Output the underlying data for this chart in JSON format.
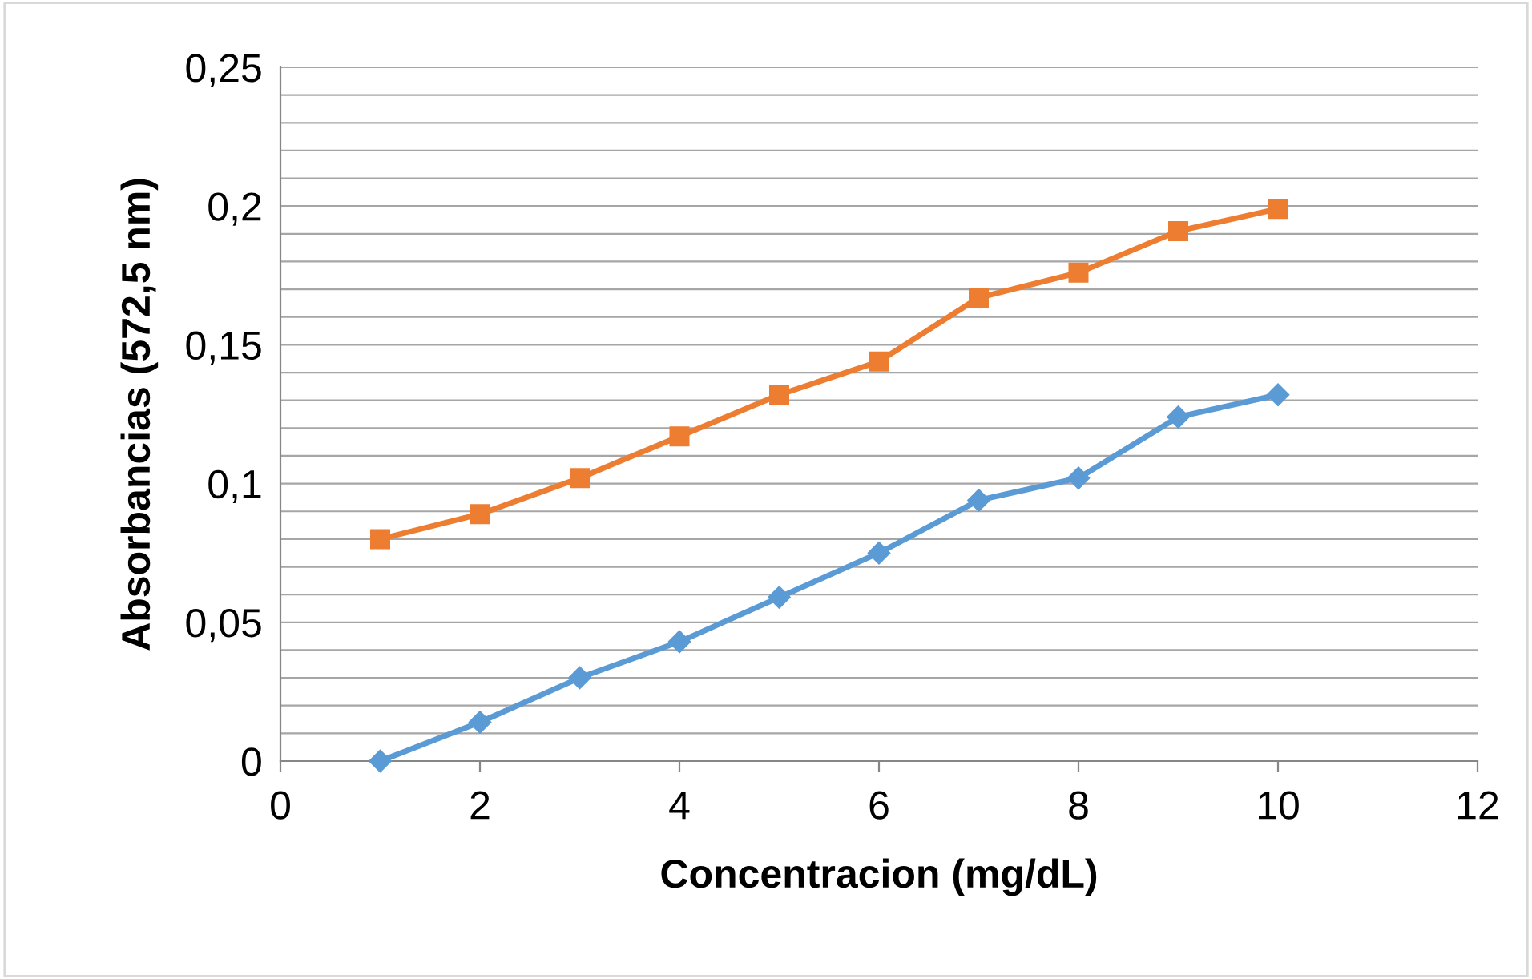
{
  "chart_data": {
    "type": "line",
    "xlabel": "Concentracion (mg/dL)",
    "ylabel": "Absorbancias (572,5 nm)",
    "x": [
      1,
      2,
      3,
      4,
      5,
      6,
      7,
      8,
      9,
      10
    ],
    "series": [
      {
        "color": "#5b9bd5",
        "marker": "diamond",
        "values": [
          0,
          0.014,
          0.03,
          0.043,
          0.059,
          0.075,
          0.094,
          0.102,
          0.124,
          0.132
        ]
      },
      {
        "color": "#ed7d31",
        "marker": "square",
        "values": [
          0.08,
          0.089,
          0.102,
          0.117,
          0.132,
          0.144,
          0.167,
          0.176,
          0.191,
          0.199
        ]
      }
    ],
    "xlim": [
      0,
      12
    ],
    "xticks": [
      0,
      2,
      4,
      6,
      8,
      10,
      12
    ],
    "ylim": [
      0,
      0.25
    ],
    "yticks": [
      {
        "value": 0,
        "label": "0"
      },
      {
        "value": 0.01,
        "label": null
      },
      {
        "value": 0.02,
        "label": null
      },
      {
        "value": 0.03,
        "label": null
      },
      {
        "value": 0.04,
        "label": null
      },
      {
        "value": 0.05,
        "label": "0,05"
      },
      {
        "value": 0.06,
        "label": null
      },
      {
        "value": 0.07,
        "label": null
      },
      {
        "value": 0.08,
        "label": null
      },
      {
        "value": 0.09,
        "label": null
      },
      {
        "value": 0.1,
        "label": "0,1"
      },
      {
        "value": 0.11,
        "label": null
      },
      {
        "value": 0.12,
        "label": null
      },
      {
        "value": 0.13,
        "label": null
      },
      {
        "value": 0.14,
        "label": null
      },
      {
        "value": 0.15,
        "label": "0,15"
      },
      {
        "value": 0.16,
        "label": null
      },
      {
        "value": 0.17,
        "label": null
      },
      {
        "value": 0.18,
        "label": null
      },
      {
        "value": 0.19,
        "label": null
      },
      {
        "value": 0.2,
        "label": "0,2"
      },
      {
        "value": 0.21,
        "label": null
      },
      {
        "value": 0.22,
        "label": null
      },
      {
        "value": 0.23,
        "label": null
      },
      {
        "value": 0.24,
        "label": null
      },
      {
        "value": 0.25,
        "label": "0,25"
      }
    ],
    "grid": "y",
    "line_style": "solid"
  }
}
